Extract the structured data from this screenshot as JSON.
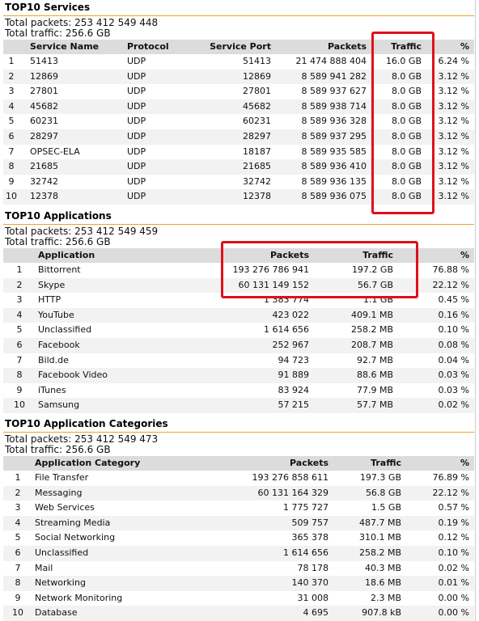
{
  "sections": [
    {
      "title": "TOP10 Services",
      "total_packets": "Total packets: 253 412 549 448",
      "total_traffic": "Total traffic: 256.6 GB",
      "header": [
        "Service Name",
        "Protocol",
        "Service Port",
        "Packets",
        "Traffic",
        "%"
      ],
      "rows": [
        [
          "1",
          "51413",
          "UDP",
          "51413",
          "21 474 888 404",
          "16.0 GB",
          "6.24 %"
        ],
        [
          "2",
          "12869",
          "UDP",
          "12869",
          "8 589 941 282",
          "8.0 GB",
          "3.12 %"
        ],
        [
          "3",
          "27801",
          "UDP",
          "27801",
          "8 589 937 627",
          "8.0 GB",
          "3.12 %"
        ],
        [
          "4",
          "45682",
          "UDP",
          "45682",
          "8 589 938 714",
          "8.0 GB",
          "3.12 %"
        ],
        [
          "5",
          "60231",
          "UDP",
          "60231",
          "8 589 936 328",
          "8.0 GB",
          "3.12 %"
        ],
        [
          "6",
          "28297",
          "UDP",
          "28297",
          "8 589 937 295",
          "8.0 GB",
          "3.12 %"
        ],
        [
          "7",
          "OPSEC-ELA",
          "UDP",
          "18187",
          "8 589 935 585",
          "8.0 GB",
          "3.12 %"
        ],
        [
          "8",
          "21685",
          "UDP",
          "21685",
          "8 589 936 410",
          "8.0 GB",
          "3.12 %"
        ],
        [
          "9",
          "32742",
          "UDP",
          "32742",
          "8 589 936 135",
          "8.0 GB",
          "3.12 %"
        ],
        [
          "10",
          "12378",
          "UDP",
          "12378",
          "8 589 936 075",
          "8.0 GB",
          "3.12 %"
        ]
      ]
    },
    {
      "title": "TOP10 Applications",
      "total_packets": "Total packets: 253 412 549 459",
      "total_traffic": "Total traffic: 256.6 GB",
      "header": [
        "Application",
        "Packets",
        "Traffic",
        "%"
      ],
      "rows": [
        [
          "1",
          "Bittorrent",
          "193 276 786 941",
          "197.2 GB",
          "76.88 %"
        ],
        [
          "2",
          "Skype",
          "60 131 149 152",
          "56.7 GB",
          "22.12 %"
        ],
        [
          "3",
          "HTTP",
          "1 383 774",
          "1.1 GB",
          "0.45 %"
        ],
        [
          "4",
          "YouTube",
          "423 022",
          "409.1 MB",
          "0.16 %"
        ],
        [
          "5",
          "Unclassified",
          "1 614 656",
          "258.2 MB",
          "0.10 %"
        ],
        [
          "6",
          "Facebook",
          "252 967",
          "208.7 MB",
          "0.08 %"
        ],
        [
          "7",
          "Bild.de",
          "94 723",
          "92.7 MB",
          "0.04 %"
        ],
        [
          "8",
          "Facebook Video",
          "91 889",
          "88.6 MB",
          "0.03 %"
        ],
        [
          "9",
          "iTunes",
          "83 924",
          "77.9 MB",
          "0.03 %"
        ],
        [
          "10",
          "Samsung",
          "57 215",
          "57.7 MB",
          "0.02 %"
        ]
      ]
    },
    {
      "title": "TOP10 Application Categories",
      "total_packets": "Total packets: 253 412 549 473",
      "total_traffic": "Total traffic: 256.6 GB",
      "header": [
        "Application Category",
        "Packets",
        "Traffic",
        "%"
      ],
      "rows": [
        [
          "1",
          "File Transfer",
          "193 276 858 611",
          "197.3 GB",
          "76.89 %"
        ],
        [
          "2",
          "Messaging",
          "60 131 164 329",
          "56.8 GB",
          "22.12 %"
        ],
        [
          "3",
          "Web Services",
          "1 775 727",
          "1.5 GB",
          "0.57 %"
        ],
        [
          "4",
          "Streaming Media",
          "509 757",
          "487.7 MB",
          "0.19 %"
        ],
        [
          "5",
          "Social Networking",
          "365 378",
          "310.1 MB",
          "0.12 %"
        ],
        [
          "6",
          "Unclassified",
          "1 614 656",
          "258.2 MB",
          "0.10 %"
        ],
        [
          "7",
          "Mail",
          "78 178",
          "40.3 MB",
          "0.02 %"
        ],
        [
          "8",
          "Networking",
          "140 370",
          "18.6 MB",
          "0.01 %"
        ],
        [
          "9",
          "Network Monitoring",
          "31 008",
          "2.3 MB",
          "0.00 %"
        ],
        [
          "10",
          "Database",
          "4 695",
          "907.8 kB",
          "0.00 %"
        ]
      ]
    }
  ]
}
